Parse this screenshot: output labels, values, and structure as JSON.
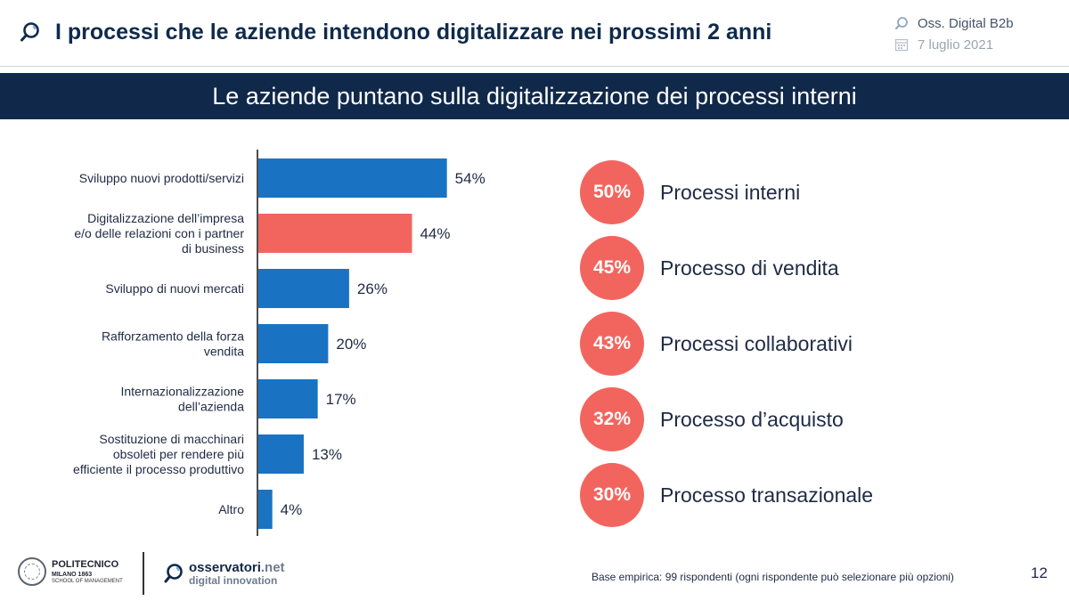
{
  "header": {
    "title": "I processi che le aziende intendono digitalizzare nei prossimi 2 anni",
    "source": "Oss. Digital B2b",
    "date": "7 luglio 2021"
  },
  "banner": {
    "text": "Le aziende puntano sulla digitalizzazione dei processi interni"
  },
  "colors": {
    "bar": "#1a73c2",
    "highlight": "#f2655e",
    "navy": "#10294a"
  },
  "chart_data": {
    "type": "bar",
    "orientation": "horizontal",
    "categories": [
      [
        "Sviluppo nuovi prodotti/servizi"
      ],
      [
        "Digitalizzazione dell’impresa",
        "e/o delle relazioni con i partner",
        "di business"
      ],
      [
        "Sviluppo di nuovi mercati"
      ],
      [
        "Rafforzamento della forza",
        "vendita"
      ],
      [
        "Internazionalizzazione",
        "dell’azienda"
      ],
      [
        "Sostituzione di macchinari",
        "obsoleti per rendere più",
        "efficiente il processo produttivo"
      ],
      [
        "Altro"
      ]
    ],
    "values": [
      54,
      44,
      26,
      20,
      17,
      13,
      4
    ],
    "value_labels": [
      "54%",
      "44%",
      "26%",
      "20%",
      "17%",
      "13%",
      "4%"
    ],
    "highlight_index": 1,
    "xlim": [
      0,
      60
    ],
    "unit": "%"
  },
  "bubbles": [
    {
      "value": "50%",
      "label": "Processi interni"
    },
    {
      "value": "45%",
      "label": "Processo di vendita"
    },
    {
      "value": "43%",
      "label": "Processi collaborativi"
    },
    {
      "value": "32%",
      "label": "Processo d’acquisto"
    },
    {
      "value": "30%",
      "label": "Processo transazionale"
    }
  ],
  "footer": {
    "poli_name": "POLITECNICO",
    "poli_city": "MILANO 1863",
    "poli_school": "SCHOOL OF MANAGEMENT",
    "oss_name": "osservatori",
    "oss_tld": ".net",
    "oss_sub": "digital innovation",
    "base_note": "Base empirica: 99 rispondenti (ogni rispondente può selezionare più opzioni)",
    "page_number": "12"
  }
}
